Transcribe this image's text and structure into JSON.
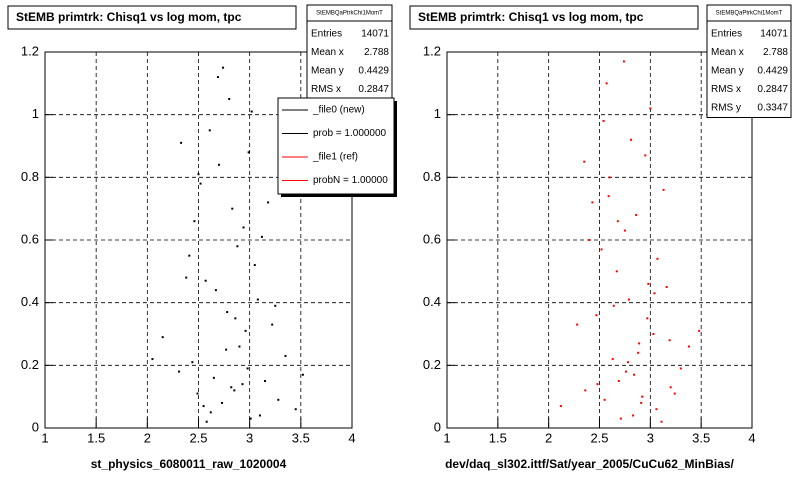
{
  "chart_data": [
    {
      "type": "scatter",
      "title": "StEMB primtrk: Chisq1 vs log mom, tpc",
      "x_label": "st_physics_6080011_raw_1020004",
      "xlim": [
        1,
        4
      ],
      "ylim": [
        0,
        1.2
      ],
      "xticks": [
        1,
        1.5,
        2,
        2.5,
        3,
        3.5,
        4
      ],
      "yticks": [
        0,
        0.2,
        0.4,
        0.6,
        0.8,
        1,
        1.2
      ],
      "grid": true,
      "stats": {
        "header": "StEMBQaPtrkChi1MomT",
        "rows": [
          {
            "label": "Entries",
            "value": 14071
          },
          {
            "label": "Mean x",
            "value": 2.788
          },
          {
            "label": "Mean y",
            "value": 0.4429
          },
          {
            "label": "RMS x",
            "value": 0.2847
          }
        ]
      },
      "legend": [
        {
          "label": "_file0 (new)",
          "color": "#000000"
        },
        {
          "label": "prob = 1.000000",
          "color": "#000000"
        },
        {
          "label": "_file1 (ref)",
          "color": "#ff0000"
        },
        {
          "label": "probN = 1.00000",
          "color": "#ff0000"
        }
      ],
      "series": [
        {
          "color": "#000000",
          "x": [
            2.62,
            2.85,
            3.01,
            2.44,
            2.73,
            3.15,
            2.96,
            2.58,
            2.31,
            3.28,
            2.67,
            2.9,
            3.05,
            2.49,
            2.78,
            3.12,
            2.55,
            2.83,
            2.98,
            2.38,
            3.22,
            2.7,
            2.93,
            2.61,
            3.08,
            2.46,
            2.8,
            3.35,
            2.52,
            2.88,
            2.15,
            3.45,
            2.74,
            2.99,
            2.65,
            3.18,
            2.41,
            2.86,
            3.02,
            2.57,
            2.77,
            3.25,
            2.33,
            2.94,
            2.69,
            3.1,
            2.5,
            2.82,
            2.05,
            3.52
          ],
          "values": [
            0.05,
            0.12,
            0.03,
            0.21,
            0.08,
            0.15,
            0.31,
            0.02,
            0.18,
            0.09,
            0.44,
            0.26,
            0.52,
            0.11,
            0.37,
            0.61,
            0.07,
            0.7,
            0.19,
            0.48,
            0.33,
            0.84,
            0.14,
            0.95,
            0.41,
            0.66,
            1.05,
            0.23,
            0.78,
            0.58,
            0.29,
            0.06,
            1.15,
            0.88,
            0.16,
            0.72,
            0.55,
            0.35,
            1.01,
            0.47,
            0.25,
            0.39,
            0.91,
            0.64,
            1.12,
            0.04,
            0.81,
            0.13,
            0.22,
            0.17
          ]
        }
      ]
    },
    {
      "type": "scatter",
      "title": "StEMB primtrk: Chisq1 vs log mom, tpc",
      "x_label": "dev/daq_sl302.ittf/Sat/year_2005/CuCu62_MinBias/",
      "xlim": [
        1,
        4
      ],
      "ylim": [
        0,
        1.2
      ],
      "xticks": [
        1,
        1.5,
        2,
        2.5,
        3,
        3.5,
        4
      ],
      "yticks": [
        0,
        0.2,
        0.4,
        0.6,
        0.8,
        1,
        1.2
      ],
      "grid": true,
      "stats": {
        "header": "StEMBQaPtrkChi1MomT",
        "rows": [
          {
            "label": "Entries",
            "value": 14071
          },
          {
            "label": "Mean x",
            "value": 2.788
          },
          {
            "label": "Mean y",
            "value": 0.4429
          },
          {
            "label": "RMS x",
            "value": 0.2847
          },
          {
            "label": "RMS y",
            "value": 0.3347
          }
        ]
      },
      "series": [
        {
          "color": "#ff0000",
          "x": [
            2.71,
            2.92,
            2.48,
            3.06,
            2.63,
            2.84,
            3.19,
            2.55,
            2.97,
            2.36,
            2.79,
            3.11,
            2.67,
            2.88,
            3.3,
            2.52,
            2.75,
            3.03,
            2.43,
            2.91,
            2.6,
            3.16,
            2.81,
            2.47,
            3.0,
            2.69,
            3.38,
            2.57,
            2.86,
            2.28,
            3.07,
            2.74,
            2.95,
            2.64,
            3.24,
            2.4,
            2.83,
            3.13,
            2.54,
            2.78,
            2.98,
            2.35,
            3.2,
            2.68,
            2.89,
            2.12,
            3.48,
            2.59,
            2.76,
            3.04
          ],
          "values": [
            0.03,
            0.1,
            0.14,
            0.06,
            0.22,
            0.17,
            0.28,
            0.09,
            0.35,
            0.12,
            0.41,
            0.02,
            0.5,
            0.24,
            0.19,
            0.57,
            0.63,
            0.3,
            0.72,
            0.08,
            0.8,
            0.45,
            0.92,
            0.36,
            1.02,
            0.15,
            0.26,
            1.1,
            0.68,
            0.33,
            0.54,
            1.17,
            0.87,
            0.39,
            0.11,
            0.6,
            0.04,
            0.76,
            0.98,
            0.21,
            0.46,
            0.85,
            0.13,
            0.66,
            0.27,
            0.07,
            0.31,
            0.74,
            0.18,
            0.43
          ]
        }
      ]
    }
  ]
}
